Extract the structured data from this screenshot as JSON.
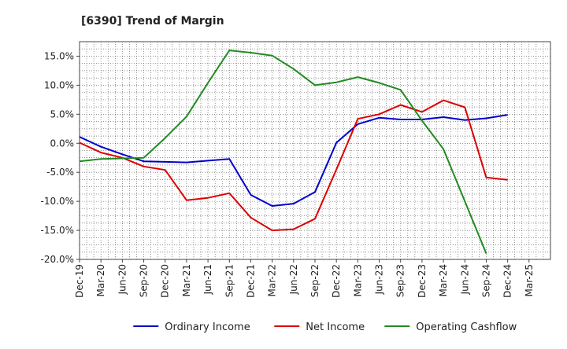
{
  "chart_data": {
    "type": "line",
    "title": "[6390]  Trend of Margin",
    "xlabel": "",
    "ylabel": "",
    "categories": [
      "Dec-19",
      "Mar-20",
      "Jun-20",
      "Sep-20",
      "Dec-20",
      "Mar-21",
      "Jun-21",
      "Sep-21",
      "Dec-21",
      "Mar-22",
      "Jun-22",
      "Sep-22",
      "Dec-22",
      "Mar-23",
      "Jun-23",
      "Sep-23",
      "Dec-23",
      "Mar-24",
      "Jun-24",
      "Sep-24",
      "Dec-24",
      "Mar-25"
    ],
    "ylim": [
      -20,
      17.5
    ],
    "yticks": [
      15,
      10,
      5,
      0,
      -5,
      -10,
      -15,
      -20
    ],
    "ytick_labels": [
      "15.0%",
      "10.0%",
      "5.0%",
      "0.0%",
      "-5.0%",
      "-10.0%",
      "-15.0%",
      "-20.0%"
    ],
    "grid": true,
    "legend_position": "bottom",
    "series": [
      {
        "name": "Ordinary Income",
        "color": "#0000cc",
        "values": [
          1.1,
          -0.6,
          -1.9,
          -3.1,
          -3.2,
          -3.3,
          -3.0,
          -2.7,
          -8.9,
          -10.8,
          -10.4,
          -8.4,
          0.1,
          3.3,
          4.4,
          4.1,
          4.1,
          4.5,
          4.0,
          4.3,
          4.9,
          null
        ]
      },
      {
        "name": "Net Income",
        "color": "#dd0000",
        "values": [
          0.1,
          -1.6,
          -2.5,
          -4.0,
          -4.6,
          -9.8,
          -9.4,
          -8.6,
          -12.8,
          -15.0,
          -14.8,
          -13.0,
          -4.5,
          4.2,
          5.0,
          6.6,
          5.4,
          7.4,
          6.2,
          -5.9,
          -6.3,
          null
        ]
      },
      {
        "name": "Operating Cashflow",
        "color": "#228b22",
        "values": [
          -3.1,
          -2.7,
          -2.6,
          -2.5,
          0.9,
          4.6,
          10.4,
          16.0,
          15.6,
          15.1,
          12.8,
          10.0,
          10.5,
          11.4,
          10.4,
          9.2,
          3.9,
          -1.0,
          -10.0,
          -19.0,
          null,
          null
        ]
      }
    ]
  }
}
